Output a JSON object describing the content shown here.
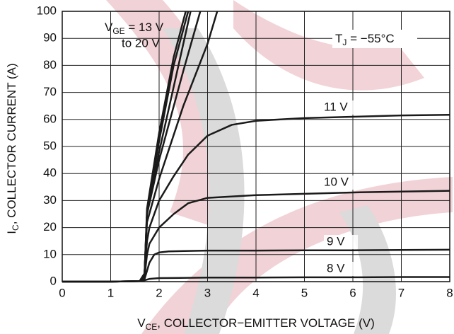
{
  "chart_data": {
    "type": "line",
    "x_label": {
      "main": "V",
      "sub": "CE",
      "rest": ", COLLECTOR−EMITTER VOLTAGE (V)"
    },
    "y_label": {
      "main": "I",
      "sub": "C",
      "rest": ", COLLECTOR CURRENT (A)"
    },
    "annotations": {
      "vge": {
        "main": "V",
        "sub": "GE",
        "rest": " = 13 V",
        "line2": "to 20 V"
      },
      "tj": {
        "main": "T",
        "sub": "J",
        "rest": " = −55°C"
      }
    },
    "xlim": [
      0,
      8
    ],
    "ylim": [
      0,
      100
    ],
    "xticks": [
      0,
      1,
      2,
      3,
      4,
      5,
      6,
      7,
      8
    ],
    "yticks": [
      0,
      10,
      20,
      30,
      40,
      50,
      60,
      70,
      80,
      90,
      100
    ],
    "grid": true,
    "series": [
      {
        "name": "8 V",
        "color": "#1a1a1a",
        "x": [
          0,
          1,
          1.6,
          1.7,
          1.8,
          2,
          3,
          4,
          5,
          6,
          7,
          8
        ],
        "values": [
          0,
          0,
          0.2,
          0.5,
          1,
          1.3,
          1.5,
          1.5,
          1.6,
          1.6,
          1.7,
          1.7
        ]
      },
      {
        "name": "9 V",
        "color": "#1a1a1a",
        "x": [
          0,
          1,
          1.6,
          1.7,
          1.75,
          1.8,
          1.9,
          2,
          2.2,
          3,
          4,
          5,
          6,
          7,
          8
        ],
        "values": [
          0,
          0,
          0.2,
          1,
          4,
          7,
          10,
          10.8,
          11.2,
          11.5,
          11.5,
          11.6,
          11.6,
          11.7,
          11.8
        ]
      },
      {
        "name": "10 V",
        "color": "#1a1a1a",
        "x": [
          0,
          1,
          1.6,
          1.7,
          1.75,
          1.8,
          2,
          2.3,
          2.6,
          3,
          4,
          5,
          6,
          7,
          8
        ],
        "values": [
          0,
          0,
          0.2,
          2,
          10,
          14,
          20,
          25,
          29,
          31,
          32,
          32.5,
          33,
          33.3,
          33.6
        ]
      },
      {
        "name": "11 V",
        "color": "#1a1a1a",
        "x": [
          0,
          1,
          1.6,
          1.7,
          1.75,
          1.8,
          2,
          2.3,
          2.6,
          3,
          3.5,
          4,
          5,
          6,
          7,
          8
        ],
        "values": [
          0,
          0,
          0.2,
          3,
          15,
          20,
          30,
          39,
          47,
          54,
          58,
          59.5,
          60.5,
          61,
          61.5,
          61.7
        ]
      },
      {
        "color": "#1a1a1a",
        "x": [
          1.6,
          1.7,
          1.75,
          2,
          2.5,
          3,
          3.2
        ],
        "values": [
          0.2,
          3,
          22,
          38,
          65,
          88,
          100
        ]
      },
      {
        "color": "#1a1a1a",
        "x": [
          1.6,
          1.7,
          1.75,
          2,
          2.5,
          2.85
        ],
        "values": [
          0.2,
          3,
          25,
          45,
          78,
          100
        ]
      },
      {
        "color": "#1a1a1a",
        "x": [
          1.6,
          1.7,
          1.75,
          2,
          2.4,
          2.65
        ],
        "values": [
          0.2,
          3,
          25,
          48,
          80,
          100
        ]
      },
      {
        "color": "#1a1a1a",
        "x": [
          1.6,
          1.7,
          1.75,
          2,
          2.3,
          2.6
        ],
        "values": [
          0.2,
          3,
          26,
          52,
          80,
          100
        ]
      },
      {
        "color": "#1a1a1a",
        "x": [
          1.6,
          1.7,
          1.75,
          2,
          2.3,
          2.55
        ],
        "values": [
          0.2,
          3,
          27,
          55,
          83,
          100
        ]
      }
    ]
  }
}
